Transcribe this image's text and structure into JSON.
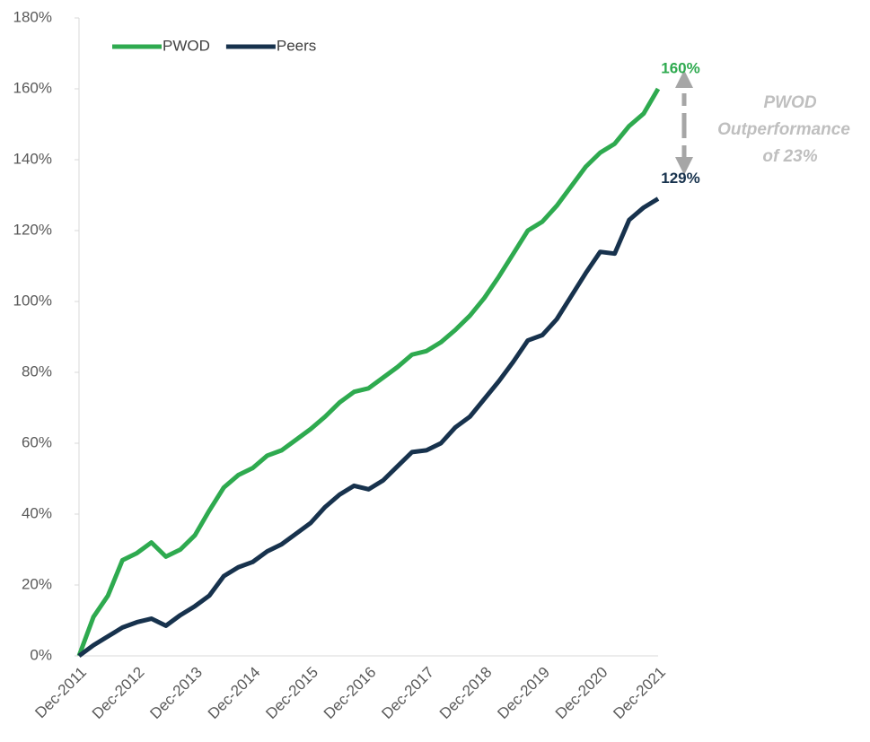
{
  "chart_data": {
    "type": "line",
    "categories": [
      "Dec-2011",
      null,
      null,
      null,
      "Dec-2012",
      null,
      null,
      null,
      "Dec-2013",
      null,
      null,
      null,
      "Dec-2014",
      null,
      null,
      null,
      "Dec-2015",
      null,
      null,
      null,
      "Dec-2016",
      null,
      null,
      null,
      "Dec-2017",
      null,
      null,
      null,
      "Dec-2018",
      null,
      null,
      null,
      "Dec-2019",
      null,
      null,
      null,
      "Dec-2020",
      null,
      null,
      null,
      "Dec-2021"
    ],
    "series": [
      {
        "name": "PWOD",
        "color": "#2eaa4f",
        "values": [
          0,
          11,
          17,
          27,
          29,
          32,
          28,
          30,
          34,
          41,
          47.5,
          51,
          53,
          56.5,
          58,
          61,
          64,
          67.5,
          71.5,
          74.5,
          75.5,
          78.5,
          81.5,
          85,
          86,
          88.5,
          92,
          96,
          101,
          107,
          113.5,
          120,
          122.5,
          127,
          132.5,
          138,
          142,
          144.5,
          149.5,
          153,
          160
        ]
      },
      {
        "name": "Peers",
        "color": "#17324d",
        "values": [
          0,
          3,
          5.5,
          8,
          9.5,
          10.5,
          8.5,
          11.5,
          14,
          17,
          22.5,
          25,
          26.5,
          29.5,
          31.5,
          34.5,
          37.5,
          42,
          45.5,
          48,
          47,
          49.5,
          53.5,
          57.5,
          58,
          60,
          64.5,
          67.5,
          72.5,
          77.5,
          83,
          89,
          90.5,
          95,
          101.5,
          108,
          114,
          113.5,
          123,
          126.5,
          129
        ]
      }
    ],
    "ylim": [
      0,
      180
    ],
    "yticks": [
      {
        "value": 0,
        "label": "0%"
      },
      {
        "value": 20,
        "label": "20%"
      },
      {
        "value": 40,
        "label": "40%"
      },
      {
        "value": 60,
        "label": "60%"
      },
      {
        "value": 80,
        "label": "80%"
      },
      {
        "value": 100,
        "label": "100%"
      },
      {
        "value": 120,
        "label": "120%"
      },
      {
        "value": 140,
        "label": "140%"
      },
      {
        "value": 160,
        "label": "160%"
      },
      {
        "value": 180,
        "label": "180%"
      }
    ],
    "grid": false,
    "legend": "upper left",
    "end_labels": [
      "160%",
      "129%"
    ],
    "annotation": [
      "PWOD",
      "Outperformance",
      "of 23%"
    ]
  }
}
